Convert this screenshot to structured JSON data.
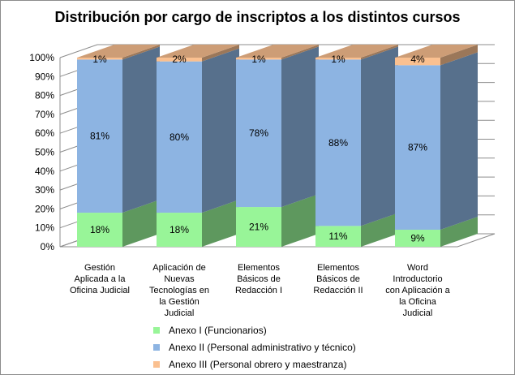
{
  "chart_data": {
    "type": "bar",
    "stacked": true,
    "percent_stacked": true,
    "three_d": true,
    "title": "Distribución por cargo de inscriptos a los distintos cursos",
    "categories": [
      [
        "Gestión",
        "Aplicada a la",
        "Oficina Judicial"
      ],
      [
        "Aplicación de",
        "Nuevas",
        "Tecnologías en",
        "la Gestión",
        "Judicial"
      ],
      [
        "Elementos",
        "Básicos de",
        "Redacción I"
      ],
      [
        "Elementos",
        "Básicos de",
        "Redacción II"
      ],
      [
        "Word",
        "Introductorio",
        "con Aplicación a",
        "la Oficina",
        "Judicial"
      ]
    ],
    "series": [
      {
        "name": "Anexo I (Funcionarios)",
        "color": "#98F598",
        "values": [
          18,
          18,
          21,
          11,
          9
        ],
        "labels": [
          "18%",
          "18%",
          "21%",
          "11%",
          "9%"
        ]
      },
      {
        "name": "Anexo II (Personal administrativo y técnico)",
        "color": "#8DB4E2",
        "values": [
          81,
          80,
          78,
          88,
          87
        ],
        "labels": [
          "81%",
          "80%",
          "78%",
          "88%",
          "87%"
        ]
      },
      {
        "name": "Anexo III (Personal obrero y maestranza)",
        "color": "#FAC090",
        "values": [
          1,
          2,
          1,
          1,
          4
        ],
        "labels": [
          "1%",
          "2%",
          "1%",
          "1%",
          "4%"
        ]
      }
    ],
    "yticks": [
      "0%",
      "10%",
      "20%",
      "30%",
      "40%",
      "50%",
      "60%",
      "70%",
      "80%",
      "90%",
      "100%"
    ],
    "ylim": [
      0,
      100
    ],
    "grid": true,
    "legend_position": "bottom"
  }
}
